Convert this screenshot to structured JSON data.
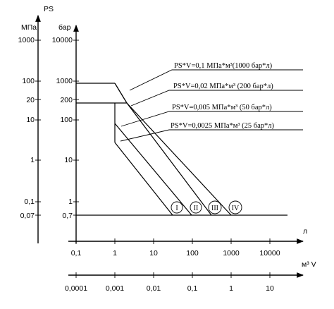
{
  "chart_data": {
    "type": "line",
    "left_axis": {
      "title": "PS",
      "unit": "МПа",
      "ticks": [
        "1000",
        "100",
        "20",
        "10",
        "1",
        "0,1",
        "0,07"
      ]
    },
    "right_axis": {
      "unit": "бар",
      "ticks": [
        "10000",
        "1000",
        "200",
        "100",
        "10",
        "1",
        "0,7"
      ]
    },
    "x_axis_liters": {
      "label": "л",
      "ticks": [
        "0,1",
        "1",
        "10",
        "100",
        "1000",
        "10000"
      ]
    },
    "x_axis_m3": {
      "label": "м³ V",
      "ticks": [
        "0,0001",
        "0,001",
        "0,01",
        "0,1",
        "1",
        "10"
      ]
    },
    "pressure_limits_bar": [
      1000,
      200,
      0.7
    ],
    "volume_break_l": 1,
    "series": [
      {
        "name": "I",
        "ps_v_bar_l": 25
      },
      {
        "name": "II",
        "ps_v_bar_l": 50
      },
      {
        "name": "III",
        "ps_v_bar_l": 200
      },
      {
        "name": "IV",
        "ps_v_bar_l": 1000
      }
    ],
    "annotations": [
      {
        "text": "PS*V=0,1 МПа*м³(1000 бар*л)",
        "for": "IV"
      },
      {
        "text": "PS*V=0,02 МПа*м³ (200 бар*л)",
        "for": "III"
      },
      {
        "text": "PS*V=0,005 МПа*м³ (50 бар*л)",
        "for": "II"
      },
      {
        "text": "PS*V=0,0025 МПа*м³ (25 бар*л)",
        "for": "I"
      }
    ]
  }
}
